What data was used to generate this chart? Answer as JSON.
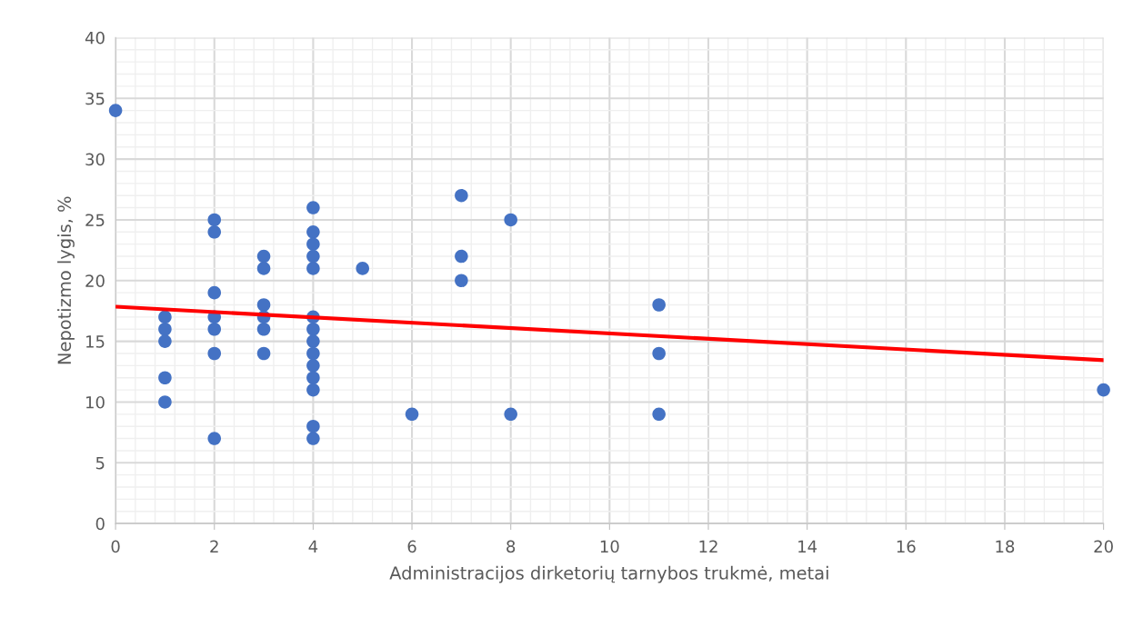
{
  "chart_data": {
    "type": "scatter",
    "xlabel": "Administracijos dirketorių tarnybos trukmė, metai",
    "ylabel": "Nepotizmo lygis, %",
    "series": [
      {
        "color": "#4472c4",
        "marker": "circle",
        "x": [
          0,
          1,
          1,
          1,
          1,
          1,
          2,
          2,
          2,
          2,
          2,
          2,
          2,
          3,
          3,
          3,
          3,
          3,
          3,
          4,
          4,
          4,
          4,
          4,
          4,
          4,
          4,
          4,
          4,
          4,
          4,
          4,
          4,
          5,
          6,
          7,
          7,
          7,
          8,
          8,
          11,
          11,
          11,
          20
        ],
        "values": [
          34,
          17,
          16,
          15,
          12,
          10,
          25,
          24,
          19,
          17,
          16,
          14,
          7,
          22,
          21,
          18,
          17,
          16,
          14,
          26,
          24,
          23,
          22,
          21,
          17,
          16,
          15,
          14,
          13,
          12,
          11,
          8,
          7,
          21,
          9,
          27,
          22,
          20,
          25,
          9,
          18,
          14,
          9,
          11
        ]
      },
      {
        "type": "line",
        "color": "#ff0000",
        "x": [
          0,
          20
        ],
        "values": [
          17.85,
          13.45
        ]
      }
    ],
    "xlim": [
      0,
      20
    ],
    "xticks": [
      0,
      2,
      4,
      6,
      8,
      10,
      12,
      14,
      16,
      18,
      20
    ],
    "ylim": [
      0,
      40
    ],
    "yticks": [
      0,
      5,
      10,
      15,
      20,
      25,
      30,
      35,
      40
    ],
    "grid": true
  }
}
